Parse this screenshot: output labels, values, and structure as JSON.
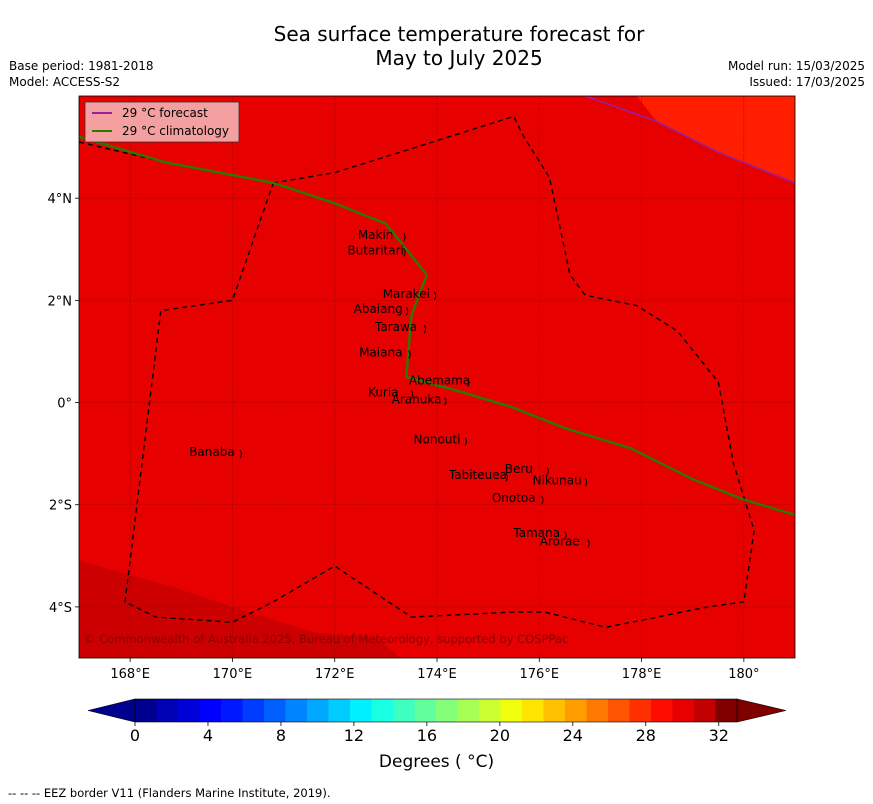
{
  "title_line1": "Sea surface temperature forecast for",
  "title_line2": "May to July 2025",
  "meta_left": [
    "Base period: 1981-2018",
    "Model: ACCESS-S2"
  ],
  "meta_right": [
    "Model run: 15/03/2025",
    "Issued: 17/03/2025"
  ],
  "legend": [
    {
      "label": "29 °C  forecast",
      "color": "#9b1fa0"
    },
    {
      "label": "29 °C  climatology",
      "color": "#2a7a00"
    }
  ],
  "copyright": "© Commonwealth of Australia 2025, Bureau of Meteorology, supported by COSPPac",
  "map": {
    "lon_range": [
      167.0,
      181.0
    ],
    "lat_range": [
      -5.0,
      6.0
    ],
    "x_ticks": [
      {
        "lon": 168,
        "label": "168°E"
      },
      {
        "lon": 170,
        "label": "170°E"
      },
      {
        "lon": 172,
        "label": "172°E"
      },
      {
        "lon": 174,
        "label": "174°E"
      },
      {
        "lon": 176,
        "label": "176°E"
      },
      {
        "lon": 178,
        "label": "178°E"
      },
      {
        "lon": 180,
        "label": "180°"
      }
    ],
    "y_ticks": [
      {
        "lat": 4,
        "label": "4°N"
      },
      {
        "lat": 2,
        "label": "2°N"
      },
      {
        "lat": 0,
        "label": "0°"
      },
      {
        "lat": -2,
        "label": "2°S"
      },
      {
        "lat": -4,
        "label": "4°S"
      }
    ],
    "field_colors": {
      "base": "#e60000",
      "warm": "#ff1e00",
      "cool": "#cc0000"
    },
    "labels": [
      {
        "name": "Makin",
        "lon": 172.8,
        "lat": 3.2
      },
      {
        "name": "Butaritari",
        "lon": 172.8,
        "lat": 2.9
      },
      {
        "name": "Marakei",
        "lon": 173.4,
        "lat": 2.05
      },
      {
        "name": "Abaiang",
        "lon": 172.85,
        "lat": 1.75
      },
      {
        "name": "Tarawa",
        "lon": 173.2,
        "lat": 1.4
      },
      {
        "name": "Maiana",
        "lon": 172.9,
        "lat": 0.9
      },
      {
        "name": "Abemama",
        "lon": 174.05,
        "lat": 0.35
      },
      {
        "name": "Kuria",
        "lon": 172.95,
        "lat": 0.12
      },
      {
        "name": "Aranuka",
        "lon": 173.6,
        "lat": -0.02
      },
      {
        "name": "Nonouti",
        "lon": 174.0,
        "lat": -0.8
      },
      {
        "name": "Banaba",
        "lon": 169.6,
        "lat": -1.05
      },
      {
        "name": "Beru",
        "lon": 175.6,
        "lat": -1.38
      },
      {
        "name": "Nikunau",
        "lon": 176.35,
        "lat": -1.6
      },
      {
        "name": "Tabiteuea",
        "lon": 174.8,
        "lat": -1.5
      },
      {
        "name": "Onotoa",
        "lon": 175.5,
        "lat": -1.95
      },
      {
        "name": "Tamana",
        "lon": 175.95,
        "lat": -2.63
      },
      {
        "name": "Arorae",
        "lon": 176.4,
        "lat": -2.8
      }
    ],
    "eez": [
      [
        167.0,
        5.1
      ],
      [
        168.7,
        4.7
      ],
      [
        170.8,
        4.3
      ],
      [
        172.0,
        4.5
      ],
      [
        173.6,
        5.0
      ],
      [
        175.5,
        5.6
      ],
      [
        175.7,
        5.2
      ],
      [
        176.2,
        4.4
      ],
      [
        176.6,
        2.5
      ],
      [
        176.9,
        2.1
      ],
      [
        177.9,
        1.9
      ],
      [
        178.7,
        1.4
      ],
      [
        179.5,
        0.4
      ],
      [
        179.8,
        -1.2
      ],
      [
        180.2,
        -2.5
      ],
      [
        180.0,
        -3.9
      ],
      [
        179.3,
        -4.0
      ],
      [
        177.3,
        -4.4
      ],
      [
        176.1,
        -4.1
      ],
      [
        175.5,
        -4.1
      ],
      [
        173.5,
        -4.2
      ],
      [
        172.0,
        -3.2
      ],
      [
        170.8,
        -3.9
      ],
      [
        170.0,
        -4.3
      ],
      [
        168.5,
        -4.2
      ],
      [
        167.9,
        -3.9
      ],
      [
        168.6,
        1.8
      ],
      [
        170.0,
        2.0
      ],
      [
        170.8,
        4.3
      ]
    ],
    "clim_line": [
      [
        167.0,
        5.2
      ],
      [
        168.7,
        4.7
      ],
      [
        170.8,
        4.3
      ],
      [
        172.0,
        3.9
      ],
      [
        173.0,
        3.5
      ],
      [
        173.8,
        2.5
      ],
      [
        173.5,
        1.7
      ],
      [
        173.4,
        0.5
      ],
      [
        174.5,
        0.2
      ],
      [
        175.5,
        -0.1
      ],
      [
        176.5,
        -0.5
      ],
      [
        177.8,
        -0.9
      ],
      [
        179.0,
        -1.5
      ],
      [
        180.0,
        -1.9
      ],
      [
        181.0,
        -2.2
      ]
    ],
    "fcst_line": [
      [
        176.9,
        6.0
      ],
      [
        178.3,
        5.5
      ],
      [
        179.5,
        4.9
      ],
      [
        181.0,
        4.3
      ]
    ],
    "warm_patch": [
      [
        177.9,
        6.0
      ],
      [
        181.0,
        6.0
      ],
      [
        181.0,
        4.3
      ],
      [
        179.5,
        4.9
      ],
      [
        178.3,
        5.5
      ]
    ],
    "cool_patch": [
      [
        167.0,
        -3.1
      ],
      [
        168.8,
        -3.6
      ],
      [
        170.3,
        -4.1
      ],
      [
        171.6,
        -4.5
      ],
      [
        172.8,
        -4.6
      ],
      [
        173.3,
        -5.0
      ],
      [
        167.0,
        -5.0
      ]
    ]
  },
  "colorbar": {
    "min": 0,
    "max": 33,
    "colors": [
      "#00008f",
      "#0000b5",
      "#0000d9",
      "#0000ff",
      "#0018ff",
      "#003cff",
      "#0060ff",
      "#0084ff",
      "#00a8ff",
      "#00ccff",
      "#00f0ff",
      "#18ffe4",
      "#3cffc0",
      "#60ff9c",
      "#84ff78",
      "#a8ff54",
      "#ccff30",
      "#f0ff0c",
      "#ffe400",
      "#ffc000",
      "#ff9c00",
      "#ff7800",
      "#ff5400",
      "#ff3000",
      "#ff0c00",
      "#e60000",
      "#c30000",
      "#800000"
    ],
    "under_color": "#00008f",
    "over_color": "#800000",
    "ticks": [
      {
        "value": 0,
        "label": "0"
      },
      {
        "value": 4,
        "label": "4"
      },
      {
        "value": 8,
        "label": "8"
      },
      {
        "value": 12,
        "label": "12"
      },
      {
        "value": 16,
        "label": "16"
      },
      {
        "value": 20,
        "label": "20"
      },
      {
        "value": 24,
        "label": "24"
      },
      {
        "value": 28,
        "label": "28"
      },
      {
        "value": 32,
        "label": "32"
      }
    ],
    "label": "Degrees ( °C)"
  },
  "footer": "--  --  -- EEZ border V11 (Flanders Marine Institute, 2019)."
}
